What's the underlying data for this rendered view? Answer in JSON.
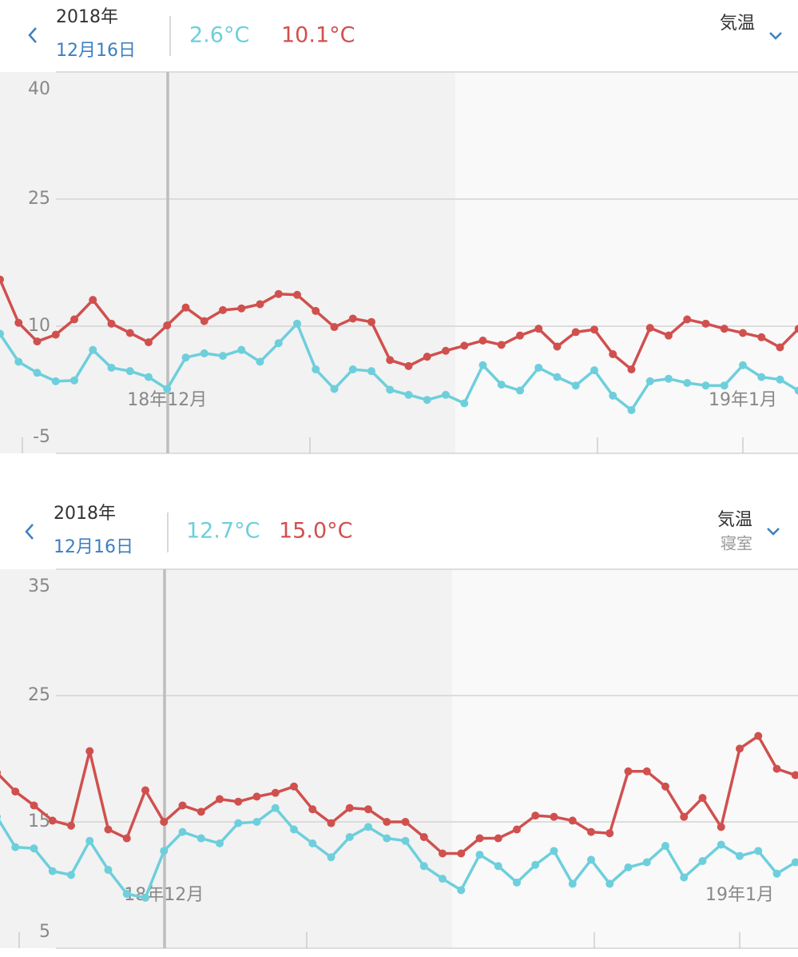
{
  "chart_data": [
    {
      "type": "line",
      "header": {
        "year": "2018年",
        "date": "12月16日",
        "min": "2.6°C",
        "max": "10.1°C",
        "metric": "気温"
      },
      "categories": [
        null,
        null,
        null,
        null,
        null,
        null,
        null,
        null,
        null,
        "18年12月",
        null,
        null,
        null,
        null,
        null,
        null,
        null,
        null,
        null,
        null,
        null,
        null,
        null,
        null,
        null,
        null,
        null,
        null,
        null,
        null,
        null,
        null,
        null,
        null,
        null,
        null,
        null,
        null,
        null,
        null,
        "19年1月",
        null,
        null,
        null
      ],
      "series": [
        {
          "color": "#d0504e",
          "values": [
            15.5,
            10.4,
            8.2,
            9.0,
            10.8,
            13.1,
            10.3,
            9.2,
            8.1,
            10.1,
            12.2,
            10.6,
            11.9,
            12.1,
            12.6,
            13.8,
            13.7,
            11.8,
            9.9,
            10.9,
            10.5,
            6.0,
            5.3,
            6.4,
            7.1,
            7.7,
            8.3,
            7.8,
            8.9,
            9.7,
            7.6,
            9.3,
            9.6,
            6.7,
            4.9,
            9.8,
            8.9,
            10.8,
            10.3,
            9.7,
            9.2,
            8.7,
            7.5,
            9.7
          ]
        },
        {
          "color": "#6dcfdc",
          "values": [
            9.1,
            5.8,
            4.5,
            3.5,
            3.6,
            7.2,
            5.1,
            4.7,
            4.0,
            2.6,
            6.3,
            6.8,
            6.5,
            7.2,
            5.8,
            8.0,
            10.3,
            4.9,
            2.6,
            4.9,
            4.7,
            2.5,
            1.9,
            1.3,
            1.9,
            0.9,
            5.4,
            3.1,
            2.4,
            5.1,
            4.0,
            3.0,
            4.8,
            1.8,
            0.1,
            3.5,
            3.8,
            3.3,
            3.0,
            3.0,
            5.4,
            4.0,
            3.7,
            2.4
          ]
        }
      ],
      "ylim": [
        -5,
        40
      ],
      "yticks": [
        40,
        25,
        10,
        -5
      ],
      "grid": true
    },
    {
      "type": "line",
      "header": {
        "year": "2018年",
        "date": "12月16日",
        "min": "12.7°C",
        "max": "15.0°C",
        "metric": "気温",
        "location": "寝室"
      },
      "categories": [
        null,
        null,
        null,
        null,
        null,
        null,
        null,
        null,
        null,
        "18年12月",
        null,
        null,
        null,
        null,
        null,
        null,
        null,
        null,
        null,
        null,
        null,
        null,
        null,
        null,
        null,
        null,
        null,
        null,
        null,
        null,
        null,
        null,
        null,
        null,
        null,
        null,
        null,
        null,
        null,
        null,
        "19年1月",
        null,
        null,
        null
      ],
      "series": [
        {
          "color": "#d0504e",
          "values": [
            18.9,
            17.4,
            16.3,
            15.1,
            14.7,
            20.6,
            14.4,
            13.7,
            17.5,
            15.0,
            16.3,
            15.8,
            16.8,
            16.6,
            17.0,
            17.3,
            17.8,
            16.0,
            14.9,
            16.1,
            16.0,
            15.0,
            15.0,
            13.8,
            12.5,
            12.5,
            13.7,
            13.7,
            14.4,
            15.5,
            15.4,
            15.1,
            14.2,
            14.1,
            19.0,
            19.0,
            17.8,
            15.4,
            16.9,
            14.6,
            20.8,
            21.8,
            19.2,
            18.7
          ]
        },
        {
          "color": "#6dcfdc",
          "values": [
            15.4,
            13.0,
            12.9,
            11.1,
            10.8,
            13.5,
            11.2,
            9.3,
            9.0,
            12.7,
            14.2,
            13.7,
            13.3,
            14.9,
            15.0,
            16.1,
            14.4,
            13.3,
            12.2,
            13.8,
            14.6,
            13.7,
            13.5,
            11.5,
            10.5,
            9.6,
            12.4,
            11.5,
            10.2,
            11.6,
            12.7,
            10.1,
            12.0,
            10.1,
            11.4,
            11.8,
            13.1,
            10.6,
            11.9,
            13.2,
            12.3,
            12.7,
            10.9,
            11.8
          ]
        }
      ],
      "ylim": [
        5,
        35
      ],
      "yticks": [
        35,
        25,
        15,
        5
      ],
      "grid": true
    }
  ]
}
